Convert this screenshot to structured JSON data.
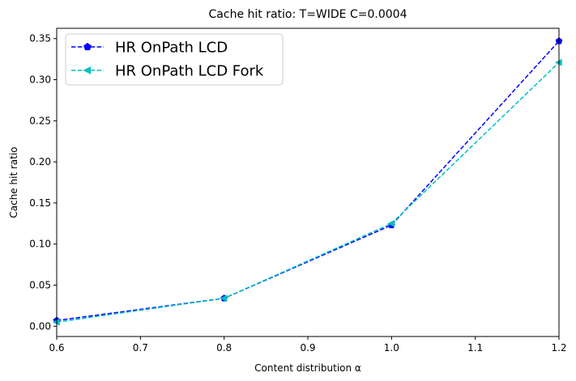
{
  "chart_data": {
    "type": "line",
    "title": "Cache hit ratio: T=WIDE C=0.0004",
    "xlabel": "Content distribution α",
    "ylabel": "Cache hit ratio",
    "xlim": [
      0.6,
      1.2
    ],
    "ylim": [
      -0.0125,
      0.3625
    ],
    "x_ticks": [
      "0.6",
      "0.7",
      "0.8",
      "0.9",
      "1.0",
      "1.1",
      "1.2"
    ],
    "y_ticks": [
      "0.00",
      "0.05",
      "0.10",
      "0.15",
      "0.20",
      "0.25",
      "0.30",
      "0.35"
    ],
    "grid": false,
    "legend_position": "top-left",
    "x": [
      0.6,
      0.8,
      1.0,
      1.2
    ],
    "series": [
      {
        "name": "HR OnPath LCD",
        "values": [
          0.007,
          0.034,
          0.123,
          0.347
        ],
        "color": "#0000ff",
        "marker": "pentagon",
        "line_style": "dashed"
      },
      {
        "name": "HR OnPath LCD Fork",
        "values": [
          0.005,
          0.034,
          0.125,
          0.321
        ],
        "color": "#00bfbf",
        "marker": "triangle-left",
        "line_style": "dashed"
      }
    ]
  }
}
